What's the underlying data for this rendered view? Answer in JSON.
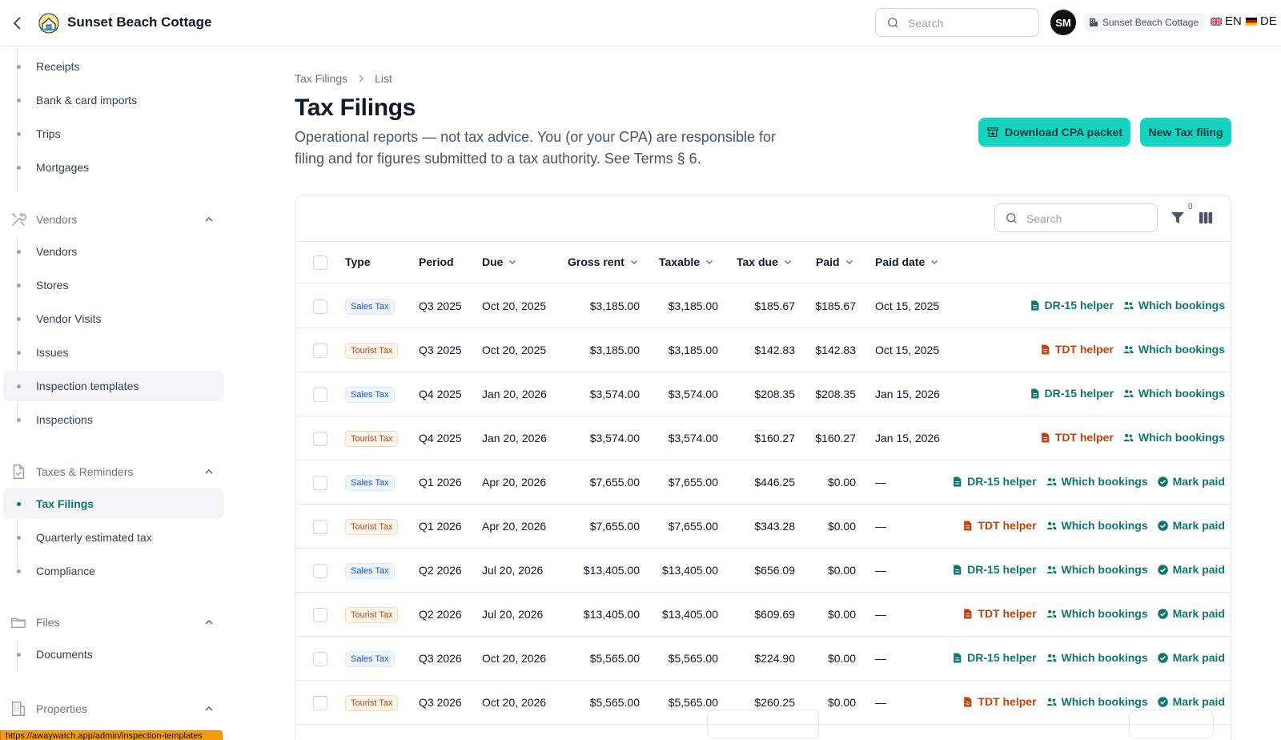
{
  "topbar": {
    "title": "Sunset Beach Cottage",
    "search_placeholder": "Search",
    "avatar_initials": "SM",
    "tenant": "Sunset Beach Cottage",
    "lang_en": "EN",
    "lang_de": "DE"
  },
  "sidebar": {
    "items_top": [
      "Receipts",
      "Bank & card imports",
      "Trips",
      "Mortgages"
    ],
    "vendors_group": "Vendors",
    "vendors_items": [
      "Vendors",
      "Stores",
      "Vendor Visits",
      "Issues",
      "Inspection templates",
      "Inspections"
    ],
    "taxes_group": "Taxes & Reminders",
    "taxes_items": [
      "Tax Filings",
      "Quarterly estimated tax",
      "Compliance"
    ],
    "files_group": "Files",
    "files_items": [
      "Documents"
    ],
    "properties_group": "Properties",
    "status_url": "https://awaywatch.app/admin/inspection-templates"
  },
  "page": {
    "breadcrumb": [
      "Tax Filings",
      "List"
    ],
    "title": "Tax Filings",
    "description": "Operational reports — not tax advice. You (or your CPA) are responsible for filing and for figures submitted to a tax authority. See Terms § 6.",
    "download_button": "Download CPA packet",
    "new_button": "New Tax filing"
  },
  "table": {
    "search_placeholder": "Search",
    "filter_count": "0",
    "columns": [
      "Type",
      "Period",
      "Due",
      "Gross rent",
      "Taxable",
      "Tax due",
      "Paid",
      "Paid date"
    ],
    "rows": [
      {
        "type": "Sales Tax",
        "kind": "sales",
        "period": "Q3 2025",
        "due": "Oct 20, 2025",
        "gross": "$3,185.00",
        "taxable": "$3,185.00",
        "tax_due": "$185.67",
        "paid": "$185.67",
        "paid_date": "Oct 15, 2025",
        "helper": "DR-15 helper",
        "bookings": "Which bookings",
        "mark_paid": ""
      },
      {
        "type": "Tourist Tax",
        "kind": "tourist",
        "period": "Q3 2025",
        "due": "Oct 20, 2025",
        "gross": "$3,185.00",
        "taxable": "$3,185.00",
        "tax_due": "$142.83",
        "paid": "$142.83",
        "paid_date": "Oct 15, 2025",
        "helper": "TDT helper",
        "bookings": "Which bookings",
        "mark_paid": ""
      },
      {
        "type": "Sales Tax",
        "kind": "sales",
        "period": "Q4 2025",
        "due": "Jan 20, 2026",
        "gross": "$3,574.00",
        "taxable": "$3,574.00",
        "tax_due": "$208.35",
        "paid": "$208.35",
        "paid_date": "Jan 15, 2026",
        "helper": "DR-15 helper",
        "bookings": "Which bookings",
        "mark_paid": ""
      },
      {
        "type": "Tourist Tax",
        "kind": "tourist",
        "period": "Q4 2025",
        "due": "Jan 20, 2026",
        "gross": "$3,574.00",
        "taxable": "$3,574.00",
        "tax_due": "$160.27",
        "paid": "$160.27",
        "paid_date": "Jan 15, 2026",
        "helper": "TDT helper",
        "bookings": "Which bookings",
        "mark_paid": ""
      },
      {
        "type": "Sales Tax",
        "kind": "sales",
        "period": "Q1 2026",
        "due": "Apr 20, 2026",
        "gross": "$7,655.00",
        "taxable": "$7,655.00",
        "tax_due": "$446.25",
        "paid": "$0.00",
        "paid_date": "—",
        "helper": "DR-15 helper",
        "bookings": "Which bookings",
        "mark_paid": "Mark paid"
      },
      {
        "type": "Tourist Tax",
        "kind": "tourist",
        "period": "Q1 2026",
        "due": "Apr 20, 2026",
        "gross": "$7,655.00",
        "taxable": "$7,655.00",
        "tax_due": "$343.28",
        "paid": "$0.00",
        "paid_date": "—",
        "helper": "TDT helper",
        "bookings": "Which bookings",
        "mark_paid": "Mark paid"
      },
      {
        "type": "Sales Tax",
        "kind": "sales",
        "period": "Q2 2026",
        "due": "Jul 20, 2026",
        "gross": "$13,405.00",
        "taxable": "$13,405.00",
        "tax_due": "$656.09",
        "paid": "$0.00",
        "paid_date": "—",
        "helper": "DR-15 helper",
        "bookings": "Which bookings",
        "mark_paid": "Mark paid"
      },
      {
        "type": "Tourist Tax",
        "kind": "tourist",
        "period": "Q2 2026",
        "due": "Jul 20, 2026",
        "gross": "$13,405.00",
        "taxable": "$13,405.00",
        "tax_due": "$609.69",
        "paid": "$0.00",
        "paid_date": "—",
        "helper": "TDT helper",
        "bookings": "Which bookings",
        "mark_paid": "Mark paid"
      },
      {
        "type": "Sales Tax",
        "kind": "sales",
        "period": "Q3 2026",
        "due": "Oct 20, 2026",
        "gross": "$5,565.00",
        "taxable": "$5,565.00",
        "tax_due": "$224.90",
        "paid": "$0.00",
        "paid_date": "—",
        "helper": "DR-15 helper",
        "bookings": "Which bookings",
        "mark_paid": "Mark paid"
      },
      {
        "type": "Tourist Tax",
        "kind": "tourist",
        "period": "Q3 2026",
        "due": "Oct 20, 2026",
        "gross": "$5,565.00",
        "taxable": "$5,565.00",
        "tax_due": "$260.25",
        "paid": "$0.00",
        "paid_date": "—",
        "helper": "TDT helper",
        "bookings": "Which bookings",
        "mark_paid": "Mark paid"
      }
    ]
  },
  "colors": {
    "accent": "#14d4c0",
    "teal_text": "#0f766e",
    "tourist_orange": "#c2410c",
    "sales_blue": "#1d4ed8"
  }
}
